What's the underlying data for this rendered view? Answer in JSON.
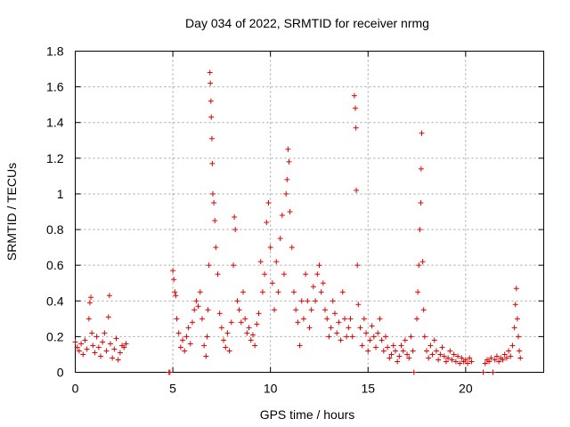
{
  "chart_data": {
    "type": "scatter",
    "title": "Day 034 of 2022, SRMTID for receiver nrmg",
    "xlabel": "GPS time / hours",
    "ylabel": "SRMTID / TECUs",
    "xlim": [
      0,
      24
    ],
    "ylim": [
      0,
      1.8
    ],
    "x_ticks": [
      0,
      5,
      10,
      15,
      20
    ],
    "x_tick_labels": [
      "0",
      "5",
      "10",
      "15",
      "20"
    ],
    "y_ticks": [
      0,
      0.2,
      0.4,
      0.6,
      0.8,
      1,
      1.2,
      1.4,
      1.6,
      1.8
    ],
    "y_tick_labels": [
      "0",
      "0.2",
      "0.4",
      "0.6",
      "0.8",
      "1",
      "1.2",
      "1.4",
      "1.6",
      "1.8"
    ],
    "grid": true,
    "marker": "+",
    "series": [
      {
        "name": "SRMTID",
        "color": "#e00000",
        "points": [
          [
            0.0,
            0.17
          ],
          [
            0.1,
            0.14
          ],
          [
            0.2,
            0.12
          ],
          [
            0.3,
            0.16
          ],
          [
            0.4,
            0.1
          ],
          [
            0.5,
            0.18
          ],
          [
            0.6,
            0.13
          ],
          [
            0.7,
            0.3
          ],
          [
            0.75,
            0.39
          ],
          [
            0.8,
            0.42
          ],
          [
            0.85,
            0.22
          ],
          [
            0.9,
            0.15
          ],
          [
            1.0,
            0.11
          ],
          [
            1.1,
            0.2
          ],
          [
            1.2,
            0.14
          ],
          [
            1.3,
            0.09
          ],
          [
            1.4,
            0.17
          ],
          [
            1.5,
            0.22
          ],
          [
            1.6,
            0.12
          ],
          [
            1.7,
            0.31
          ],
          [
            1.75,
            0.43
          ],
          [
            1.8,
            0.16
          ],
          [
            1.9,
            0.08
          ],
          [
            2.0,
            0.13
          ],
          [
            2.1,
            0.19
          ],
          [
            2.2,
            0.07
          ],
          [
            2.3,
            0.11
          ],
          [
            2.4,
            0.15
          ],
          [
            2.5,
            0.14
          ],
          [
            2.6,
            0.16
          ],
          [
            4.8,
            0.0
          ],
          [
            4.85,
            0.0
          ],
          [
            5.0,
            0.57
          ],
          [
            5.05,
            0.52
          ],
          [
            5.1,
            0.45
          ],
          [
            5.15,
            0.43
          ],
          [
            5.2,
            0.3
          ],
          [
            5.3,
            0.22
          ],
          [
            5.4,
            0.14
          ],
          [
            5.5,
            0.18
          ],
          [
            5.6,
            0.12
          ],
          [
            5.7,
            0.2
          ],
          [
            5.8,
            0.25
          ],
          [
            5.9,
            0.16
          ],
          [
            6.0,
            0.28
          ],
          [
            6.1,
            0.35
          ],
          [
            6.2,
            0.4
          ],
          [
            6.3,
            0.37
          ],
          [
            6.4,
            0.45
          ],
          [
            6.5,
            0.3
          ],
          [
            6.6,
            0.15
          ],
          [
            6.7,
            0.09
          ],
          [
            6.75,
            0.2
          ],
          [
            6.8,
            0.35
          ],
          [
            6.85,
            0.6
          ],
          [
            6.9,
            1.68
          ],
          [
            6.92,
            1.62
          ],
          [
            6.95,
            1.52
          ],
          [
            6.97,
            1.43
          ],
          [
            7.0,
            1.31
          ],
          [
            7.02,
            1.17
          ],
          [
            7.05,
            1.0
          ],
          [
            7.1,
            0.95
          ],
          [
            7.15,
            0.85
          ],
          [
            7.2,
            0.7
          ],
          [
            7.3,
            0.55
          ],
          [
            7.4,
            0.33
          ],
          [
            7.5,
            0.25
          ],
          [
            7.6,
            0.18
          ],
          [
            7.7,
            0.14
          ],
          [
            7.8,
            0.22
          ],
          [
            7.9,
            0.12
          ],
          [
            8.0,
            0.28
          ],
          [
            8.1,
            0.6
          ],
          [
            8.15,
            0.87
          ],
          [
            8.2,
            0.8
          ],
          [
            8.3,
            0.4
          ],
          [
            8.4,
            0.35
          ],
          [
            8.5,
            0.28
          ],
          [
            8.6,
            0.45
          ],
          [
            8.7,
            0.3
          ],
          [
            8.8,
            0.22
          ],
          [
            8.9,
            0.25
          ],
          [
            9.0,
            0.18
          ],
          [
            9.1,
            0.21
          ],
          [
            9.2,
            0.15
          ],
          [
            9.3,
            0.27
          ],
          [
            9.4,
            0.33
          ],
          [
            9.5,
            0.62
          ],
          [
            9.6,
            0.45
          ],
          [
            9.7,
            0.55
          ],
          [
            9.8,
            0.84
          ],
          [
            9.9,
            0.95
          ],
          [
            10.0,
            0.7
          ],
          [
            10.1,
            0.5
          ],
          [
            10.2,
            0.35
          ],
          [
            10.3,
            0.62
          ],
          [
            10.4,
            0.45
          ],
          [
            10.5,
            0.75
          ],
          [
            10.6,
            0.88
          ],
          [
            10.7,
            0.55
          ],
          [
            10.8,
            1.0
          ],
          [
            10.85,
            1.08
          ],
          [
            10.9,
            1.25
          ],
          [
            10.95,
            1.18
          ],
          [
            11.0,
            0.9
          ],
          [
            11.1,
            0.7
          ],
          [
            11.2,
            0.45
          ],
          [
            11.3,
            0.35
          ],
          [
            11.4,
            0.28
          ],
          [
            11.5,
            0.15
          ],
          [
            11.6,
            0.4
          ],
          [
            11.7,
            0.3
          ],
          [
            11.8,
            0.55
          ],
          [
            11.9,
            0.4
          ],
          [
            12.0,
            0.25
          ],
          [
            12.1,
            0.35
          ],
          [
            12.2,
            0.48
          ],
          [
            12.3,
            0.4
          ],
          [
            12.4,
            0.55
          ],
          [
            12.5,
            0.6
          ],
          [
            12.6,
            0.45
          ],
          [
            12.7,
            0.5
          ],
          [
            12.8,
            0.35
          ],
          [
            12.9,
            0.3
          ],
          [
            13.0,
            0.2
          ],
          [
            13.1,
            0.25
          ],
          [
            13.2,
            0.4
          ],
          [
            13.3,
            0.33
          ],
          [
            13.4,
            0.22
          ],
          [
            13.5,
            0.28
          ],
          [
            13.6,
            0.18
          ],
          [
            13.7,
            0.45
          ],
          [
            13.8,
            0.3
          ],
          [
            13.9,
            0.2
          ],
          [
            14.0,
            0.25
          ],
          [
            14.1,
            0.3
          ],
          [
            14.2,
            0.2
          ],
          [
            14.3,
            1.55
          ],
          [
            14.35,
            1.48
          ],
          [
            14.38,
            1.37
          ],
          [
            14.4,
            1.02
          ],
          [
            14.45,
            0.6
          ],
          [
            14.5,
            0.38
          ],
          [
            14.6,
            0.25
          ],
          [
            14.7,
            0.15
          ],
          [
            14.8,
            0.3
          ],
          [
            14.9,
            0.22
          ],
          [
            15.0,
            0.12
          ],
          [
            15.1,
            0.18
          ],
          [
            15.2,
            0.26
          ],
          [
            15.3,
            0.2
          ],
          [
            15.4,
            0.14
          ],
          [
            15.5,
            0.22
          ],
          [
            15.6,
            0.3
          ],
          [
            15.7,
            0.18
          ],
          [
            15.8,
            0.12
          ],
          [
            15.9,
            0.2
          ],
          [
            16.0,
            0.14
          ],
          [
            16.1,
            0.08
          ],
          [
            16.2,
            0.1
          ],
          [
            16.3,
            0.15
          ],
          [
            16.4,
            0.12
          ],
          [
            16.5,
            0.06
          ],
          [
            16.6,
            0.09
          ],
          [
            16.7,
            0.15
          ],
          [
            16.8,
            0.12
          ],
          [
            16.9,
            0.18
          ],
          [
            17.0,
            0.1
          ],
          [
            17.1,
            0.08
          ],
          [
            17.2,
            0.2
          ],
          [
            17.3,
            0.12
          ],
          [
            17.35,
            0.0
          ],
          [
            17.5,
            0.3
          ],
          [
            17.55,
            0.45
          ],
          [
            17.6,
            0.6
          ],
          [
            17.65,
            0.8
          ],
          [
            17.7,
            0.95
          ],
          [
            17.72,
            1.14
          ],
          [
            17.75,
            1.34
          ],
          [
            17.8,
            0.62
          ],
          [
            17.85,
            0.35
          ],
          [
            17.9,
            0.2
          ],
          [
            18.0,
            0.12
          ],
          [
            18.1,
            0.08
          ],
          [
            18.2,
            0.15
          ],
          [
            18.3,
            0.1
          ],
          [
            18.4,
            0.18
          ],
          [
            18.5,
            0.12
          ],
          [
            18.6,
            0.07
          ],
          [
            18.7,
            0.1
          ],
          [
            18.8,
            0.14
          ],
          [
            18.9,
            0.09
          ],
          [
            19.0,
            0.06
          ],
          [
            19.1,
            0.08
          ],
          [
            19.2,
            0.12
          ],
          [
            19.3,
            0.07
          ],
          [
            19.4,
            0.1
          ],
          [
            19.5,
            0.06
          ],
          [
            19.6,
            0.09
          ],
          [
            19.7,
            0.05
          ],
          [
            19.8,
            0.08
          ],
          [
            19.9,
            0.06
          ],
          [
            20.0,
            0.07
          ],
          [
            20.1,
            0.05
          ],
          [
            20.2,
            0.08
          ],
          [
            20.3,
            0.06
          ],
          [
            20.9,
            0.0
          ],
          [
            21.4,
            0.0
          ],
          [
            21.0,
            0.05
          ],
          [
            21.1,
            0.07
          ],
          [
            21.2,
            0.06
          ],
          [
            21.3,
            0.08
          ],
          [
            21.5,
            0.07
          ],
          [
            21.6,
            0.09
          ],
          [
            21.7,
            0.06
          ],
          [
            21.8,
            0.08
          ],
          [
            21.9,
            0.07
          ],
          [
            22.0,
            0.1
          ],
          [
            22.1,
            0.08
          ],
          [
            22.2,
            0.12
          ],
          [
            22.3,
            0.09
          ],
          [
            22.4,
            0.15
          ],
          [
            22.5,
            0.25
          ],
          [
            22.55,
            0.38
          ],
          [
            22.6,
            0.47
          ],
          [
            22.65,
            0.3
          ],
          [
            22.7,
            0.2
          ],
          [
            22.75,
            0.12
          ],
          [
            22.8,
            0.08
          ]
        ]
      }
    ]
  }
}
